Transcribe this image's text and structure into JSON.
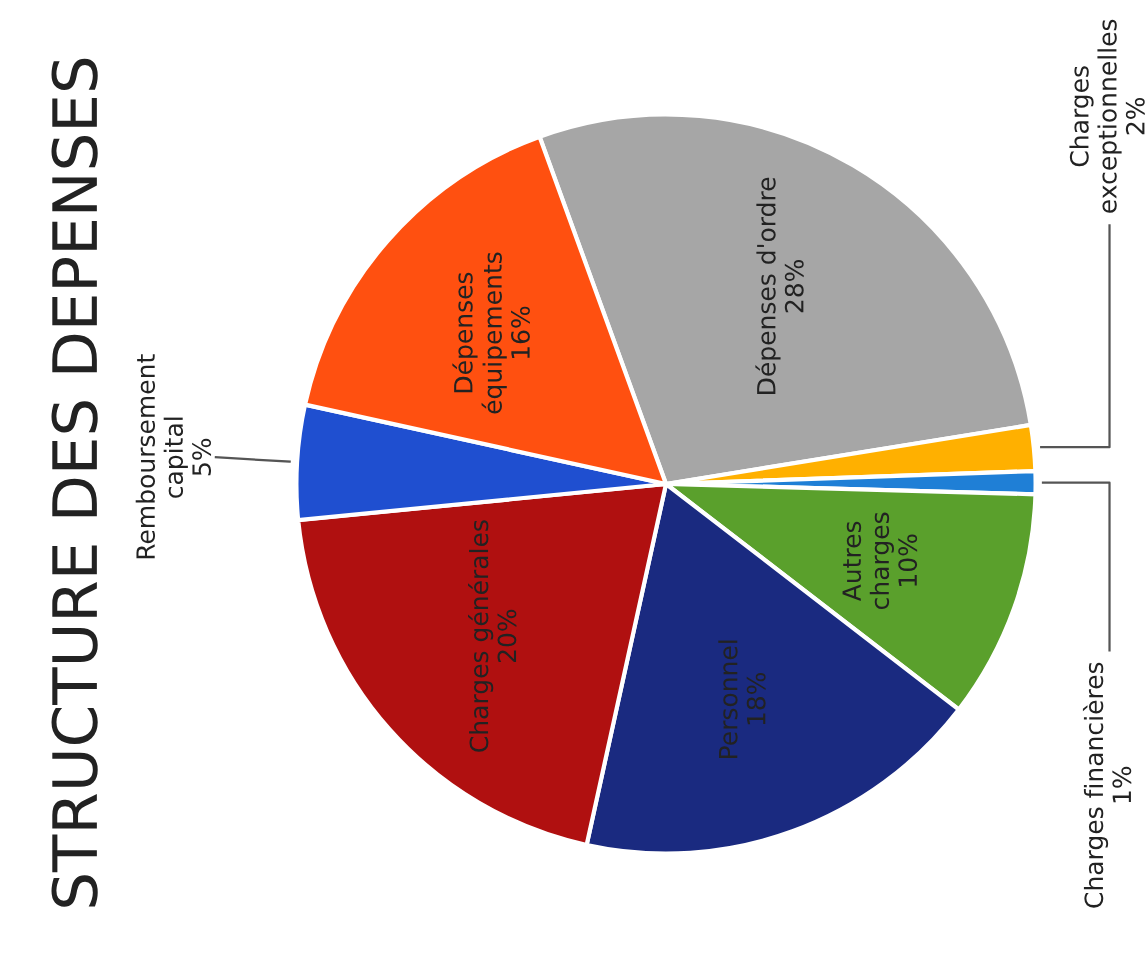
{
  "chart_data": {
    "type": "pie",
    "title": "STRUCTURE DES DEPENSES",
    "categories": [
      "Dépenses d'ordre",
      "Charges\nexceptionnelles",
      "Charges financières",
      "Autres\ncharges",
      "Personnel",
      "Charges générales",
      "Remboursement\ncapital",
      "Dépenses\néquipements"
    ],
    "values": [
      28,
      2,
      1,
      10,
      18,
      20,
      5,
      16
    ],
    "value_labels": [
      "28%",
      "2%",
      "1%",
      "10%",
      "18%",
      "20%",
      "5%",
      "16%"
    ],
    "colors": [
      "#a6a6a6",
      "#ffb000",
      "#1f7fd6",
      "#5aa02c",
      "#1a2a80",
      "#b01010",
      "#1f4fd0",
      "#ff5010"
    ],
    "legend": false
  }
}
